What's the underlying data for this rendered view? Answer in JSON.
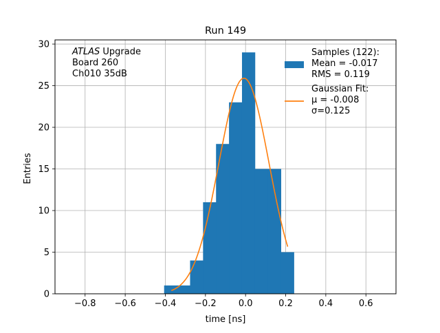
{
  "chart_data": {
    "type": "bar",
    "title": "Run 149",
    "xlabel": "time [ns]",
    "ylabel": "Entries",
    "xlim": [
      -0.95,
      0.75
    ],
    "ylim": [
      0,
      30.5
    ],
    "xticks": [
      -0.8,
      -0.6,
      -0.4,
      -0.2,
      0.0,
      0.2,
      0.4,
      0.6
    ],
    "xtick_labels": [
      "−0.8",
      "−0.6",
      "−0.4",
      "−0.2",
      "0.0",
      "0.2",
      "0.4",
      "0.6"
    ],
    "yticks": [
      0,
      5,
      10,
      15,
      20,
      25,
      30
    ],
    "ytick_labels": [
      "0",
      "5",
      "10",
      "15",
      "20",
      "25",
      "30"
    ],
    "grid": true,
    "bin_width": 0.0647,
    "histogram": {
      "bin_edges": [
        -0.406,
        -0.3413,
        -0.2766,
        -0.2119,
        -0.1472,
        -0.0825,
        -0.0178,
        0.0469,
        0.1116,
        0.1763,
        0.241
      ],
      "counts": [
        1,
        1,
        4,
        11,
        18,
        23,
        29,
        15,
        15,
        5
      ],
      "color": "#1f77b4"
    },
    "fit": {
      "mu": -0.008,
      "sigma": 0.125,
      "amplitude": 25.9,
      "x_range": [
        -0.37,
        0.21
      ],
      "color": "#ff7f0e"
    },
    "annotation_lines": [
      {
        "italic": "ATLAS",
        "rest": " Upgrade"
      },
      {
        "italic": "",
        "rest": " Board 260"
      },
      {
        "italic": "",
        "rest": " Ch010 35dB"
      }
    ],
    "legend": {
      "placement": "upper-right",
      "entries": [
        {
          "kind": "patch",
          "color": "#1f77b4",
          "lines": [
            "Samples (122):",
            " Mean = -0.017",
            " RMS = 0.119"
          ]
        },
        {
          "kind": "line",
          "color": "#ff7f0e",
          "lines": [
            "Gaussian Fit:",
            " μ = -0.008",
            " σ=0.125"
          ]
        }
      ]
    }
  }
}
